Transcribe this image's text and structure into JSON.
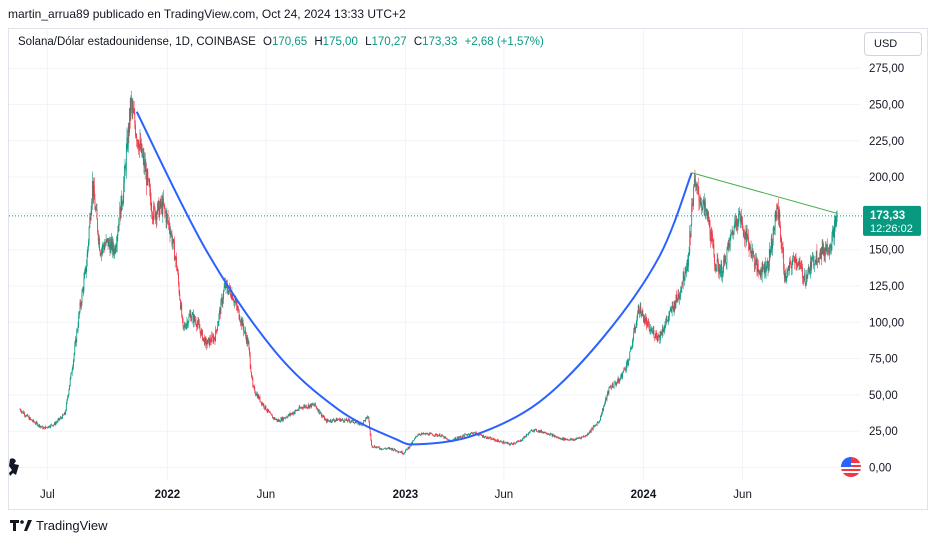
{
  "header": {
    "attribution": "martin_arrua89 publicado en TradingView.com, Oct 24, 2024 13:33 UTC+2"
  },
  "legend": {
    "symbol": "Solana/Dólar estadounidense, 1D, COINBASE",
    "open_label": "O",
    "open": "170,65",
    "high_label": "H",
    "high": "175,00",
    "low_label": "L",
    "low": "170,27",
    "close_label": "C",
    "close": "173,33",
    "change": "+2,68 (+1,57%)"
  },
  "currency_button": "USD",
  "footer": {
    "brand": "TradingView"
  },
  "colors": {
    "up": "#089981",
    "down": "#f23645",
    "curve": "#2962ff",
    "trendline": "#4caf50",
    "price_line": "#089981"
  },
  "chart_data": {
    "type": "candlestick",
    "title": "Solana/Dólar estadounidense, 1D, COINBASE",
    "ylim": [
      0,
      280
    ],
    "y_ticks": [
      {
        "value": 0,
        "label": "0,00"
      },
      {
        "value": 25,
        "label": "25,00"
      },
      {
        "value": 50,
        "label": "50,00"
      },
      {
        "value": 75,
        "label": "75,00"
      },
      {
        "value": 100,
        "label": "100,00"
      },
      {
        "value": 125,
        "label": "125,00"
      },
      {
        "value": 150,
        "label": "150,00"
      },
      {
        "value": 175,
        "label": "175,00"
      },
      {
        "value": 200,
        "label": "200,00"
      },
      {
        "value": 225,
        "label": "225,00"
      },
      {
        "value": 250,
        "label": "250,00"
      },
      {
        "value": 275,
        "label": "275,00"
      }
    ],
    "x_ticks": [
      {
        "date": "2021-07-01",
        "label": "Jul",
        "bold": false
      },
      {
        "date": "2022-01-01",
        "label": "2022",
        "bold": true
      },
      {
        "date": "2022-06-01",
        "label": "Jun",
        "bold": false
      },
      {
        "date": "2023-01-01",
        "label": "2023",
        "bold": true
      },
      {
        "date": "2023-06-01",
        "label": "Jun",
        "bold": false
      },
      {
        "date": "2024-01-01",
        "label": "2024",
        "bold": true
      },
      {
        "date": "2024-06-01",
        "label": "Jun",
        "bold": false
      }
    ],
    "x_range": [
      "2021-05-20",
      "2024-11-25"
    ],
    "price_path": [
      [
        "2021-05-20",
        40
      ],
      [
        "2021-06-05",
        33
      ],
      [
        "2021-06-25",
        27
      ],
      [
        "2021-07-12",
        30
      ],
      [
        "2021-07-28",
        37
      ],
      [
        "2021-08-10",
        75
      ],
      [
        "2021-08-20",
        110
      ],
      [
        "2021-08-30",
        140
      ],
      [
        "2021-09-08",
        195
      ],
      [
        "2021-09-20",
        150
      ],
      [
        "2021-10-01",
        155
      ],
      [
        "2021-10-12",
        150
      ],
      [
        "2021-10-25",
        190
      ],
      [
        "2021-11-06",
        250
      ],
      [
        "2021-11-15",
        230
      ],
      [
        "2021-11-28",
        205
      ],
      [
        "2021-12-10",
        175
      ],
      [
        "2021-12-25",
        180
      ],
      [
        "2022-01-05",
        165
      ],
      [
        "2022-01-15",
        140
      ],
      [
        "2022-01-25",
        95
      ],
      [
        "2022-02-05",
        105
      ],
      [
        "2022-02-15",
        100
      ],
      [
        "2022-03-01",
        85
      ],
      [
        "2022-03-15",
        90
      ],
      [
        "2022-03-30",
        125
      ],
      [
        "2022-04-10",
        120
      ],
      [
        "2022-04-25",
        100
      ],
      [
        "2022-05-05",
        85
      ],
      [
        "2022-05-12",
        55
      ],
      [
        "2022-05-25",
        45
      ],
      [
        "2022-06-10",
        35
      ],
      [
        "2022-06-20",
        32
      ],
      [
        "2022-07-10",
        37
      ],
      [
        "2022-07-28",
        42
      ],
      [
        "2022-08-15",
        43
      ],
      [
        "2022-09-01",
        32
      ],
      [
        "2022-09-20",
        33
      ],
      [
        "2022-10-10",
        32
      ],
      [
        "2022-10-25",
        30
      ],
      [
        "2022-11-05",
        35
      ],
      [
        "2022-11-10",
        15
      ],
      [
        "2022-11-25",
        13
      ],
      [
        "2022-12-10",
        13
      ],
      [
        "2022-12-29",
        10
      ],
      [
        "2023-01-10",
        16
      ],
      [
        "2023-01-20",
        23
      ],
      [
        "2023-02-05",
        23
      ],
      [
        "2023-02-25",
        22
      ],
      [
        "2023-03-10",
        18
      ],
      [
        "2023-03-25",
        21
      ],
      [
        "2023-04-15",
        24
      ],
      [
        "2023-05-10",
        20
      ],
      [
        "2023-06-10",
        16
      ],
      [
        "2023-06-25",
        18
      ],
      [
        "2023-07-15",
        26
      ],
      [
        "2023-08-05",
        24
      ],
      [
        "2023-08-25",
        20
      ],
      [
        "2023-09-15",
        19
      ],
      [
        "2023-10-05",
        22
      ],
      [
        "2023-10-25",
        32
      ],
      [
        "2023-11-10",
        55
      ],
      [
        "2023-11-25",
        60
      ],
      [
        "2023-12-10",
        75
      ],
      [
        "2023-12-25",
        110
      ],
      [
        "2024-01-10",
        95
      ],
      [
        "2024-01-25",
        90
      ],
      [
        "2024-02-10",
        105
      ],
      [
        "2024-02-25",
        120
      ],
      [
        "2024-03-10",
        145
      ],
      [
        "2024-03-18",
        195
      ],
      [
        "2024-03-28",
        185
      ],
      [
        "2024-04-10",
        170
      ],
      [
        "2024-04-20",
        140
      ],
      [
        "2024-05-01",
        135
      ],
      [
        "2024-05-15",
        160
      ],
      [
        "2024-05-25",
        175
      ],
      [
        "2024-06-10",
        155
      ],
      [
        "2024-06-25",
        135
      ],
      [
        "2024-07-10",
        140
      ],
      [
        "2024-07-25",
        180
      ],
      [
        "2024-08-05",
        130
      ],
      [
        "2024-08-20",
        145
      ],
      [
        "2024-09-05",
        130
      ],
      [
        "2024-09-20",
        145
      ],
      [
        "2024-10-05",
        150
      ],
      [
        "2024-10-15",
        155
      ],
      [
        "2024-10-24",
        173.33
      ]
    ],
    "annotations": {
      "rounding_curve": [
        [
          "2021-11-15",
          245
        ],
        [
          "2022-03-01",
          150
        ],
        [
          "2022-06-15",
          80
        ],
        [
          "2022-09-20",
          40
        ],
        [
          "2022-12-15",
          20
        ],
        [
          "2023-01-20",
          16
        ],
        [
          "2023-04-15",
          22
        ],
        [
          "2023-07-25",
          45
        ],
        [
          "2023-11-01",
          90
        ],
        [
          "2024-01-25",
          145
        ],
        [
          "2024-03-15",
          203
        ]
      ],
      "trendline": [
        [
          "2024-03-15",
          203
        ],
        [
          "2024-10-24",
          175
        ]
      ],
      "last_price": {
        "value": 173.33,
        "label": "173,33",
        "countdown": "12:26:02"
      }
    }
  }
}
